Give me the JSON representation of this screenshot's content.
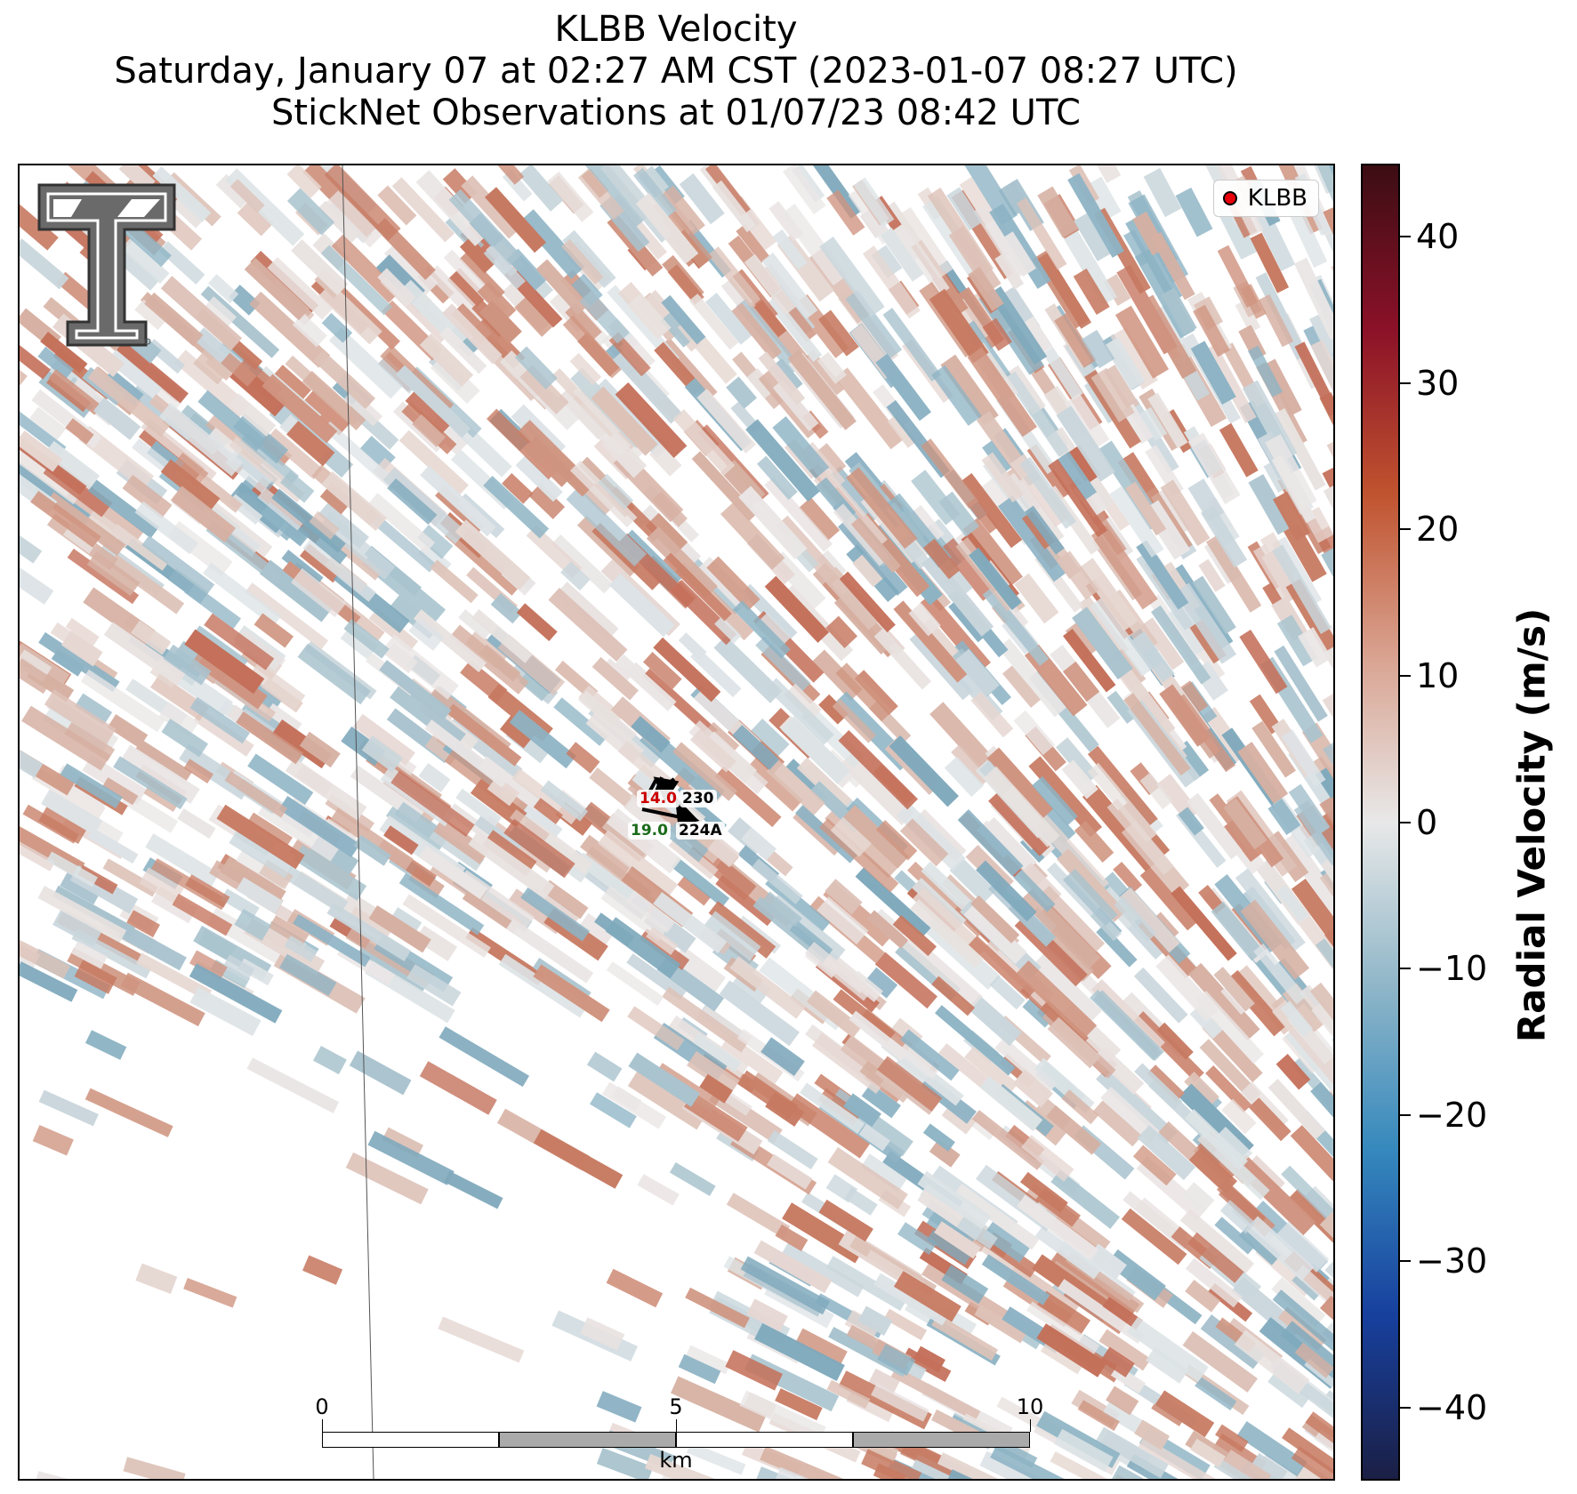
{
  "title": {
    "line1": "KLBB Velocity",
    "line2": "Saturday, January 07 at 02:27 AM CST (2023-01-07 08:27 UTC)",
    "line3": "StickNet Observations at 01/07/23 08:42 UTC"
  },
  "legend": {
    "label": "KLBB",
    "marker_color": "#e8000b"
  },
  "colorbar": {
    "label": "Radial Velocity (m/s)",
    "range": [
      -45,
      45
    ],
    "ticks": [
      "40",
      "30",
      "20",
      "10",
      "0",
      "−10",
      "−20",
      "−30",
      "−40"
    ],
    "colors": [
      "#1b1f45",
      "#17409e",
      "#3588bd",
      "#8fb6c8",
      "#e8e8e8",
      "#d9a391",
      "#c0532f",
      "#8b1128",
      "#3c0d14"
    ]
  },
  "observations": [
    {
      "station": "230",
      "value": "14.0",
      "value_color": "#cc0000"
    },
    {
      "station": "224A",
      "value": "19.0",
      "value_color": "#1a6b1a"
    }
  ],
  "scale_bar": {
    "labels": [
      "0",
      "5",
      "10"
    ],
    "unit": "km"
  },
  "logo": {
    "name": "texas-tech-double-t-logo"
  }
}
